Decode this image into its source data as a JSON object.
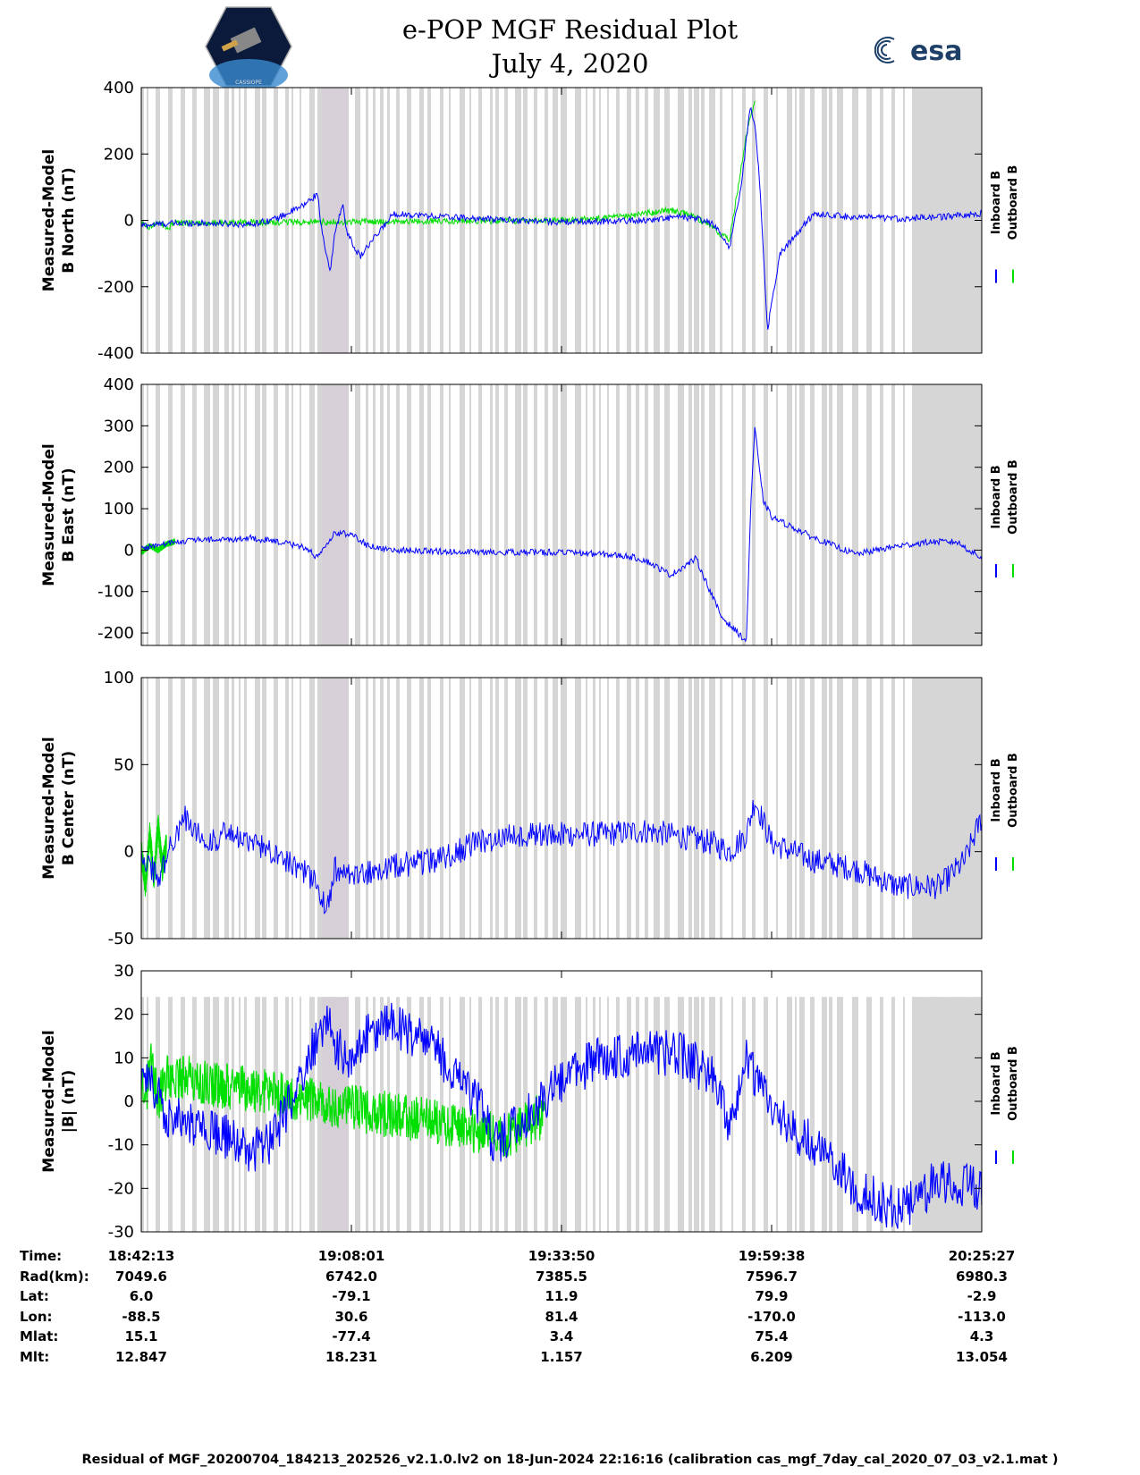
{
  "header": {
    "title_line1": "e-POP MGF Residual Plot",
    "title_line2": "July 4, 2020",
    "left_logo_text": "CASSIOPE",
    "right_logo_text": "esa"
  },
  "colors": {
    "inboard": "#0000ff",
    "outboard": "#00e000",
    "shade": "#d6d6d6",
    "shade_dark": "#d6cfd8"
  },
  "legend": {
    "inboard": "Inboard B",
    "outboard": "Outboard B"
  },
  "chart_data": [
    {
      "type": "line",
      "ylabel": [
        "Measured-Model",
        "B North (nT)"
      ],
      "ylim": [
        -400,
        400
      ],
      "yticks": [
        -400,
        -200,
        0,
        200,
        400
      ],
      "series": [
        {
          "name": "Inboard B",
          "color": "#0000ff",
          "x": [
            0,
            0.03,
            0.06,
            0.1,
            0.13,
            0.16,
            0.19,
            0.21,
            0.215,
            0.225,
            0.23,
            0.24,
            0.245,
            0.26,
            0.3,
            0.4,
            0.5,
            0.6,
            0.64,
            0.66,
            0.68,
            0.7,
            0.715,
            0.72,
            0.725,
            0.73,
            0.735,
            0.745,
            0.76,
            0.8,
            0.85,
            0.9,
            0.95,
            1.0
          ],
          "y": [
            -15,
            -10,
            -8,
            -10,
            -12,
            5,
            40,
            80,
            -40,
            -160,
            -40,
            50,
            -40,
            -110,
            20,
            5,
            -5,
            0,
            10,
            5,
            -10,
            -80,
            120,
            250,
            340,
            290,
            150,
            -330,
            -100,
            20,
            10,
            5,
            10,
            20
          ]
        },
        {
          "name": "Outboard B",
          "color": "#00e000",
          "x": [
            0,
            0.01,
            0.02,
            0.03,
            0.04,
            0.5,
            0.55,
            0.6,
            0.62,
            0.64,
            0.66,
            0.7,
            0.72,
            0.73
          ],
          "y": [
            -5,
            -20,
            -5,
            -25,
            -8,
            0,
            5,
            20,
            30,
            25,
            10,
            -60,
            260,
            360
          ]
        }
      ]
    },
    {
      "type": "line",
      "ylabel": [
        "Measured-Model",
        "B East (nT)"
      ],
      "ylim": [
        -230,
        400
      ],
      "yticks": [
        -200,
        -100,
        0,
        100,
        200,
        300,
        400
      ],
      "series": [
        {
          "name": "Inboard B",
          "color": "#0000ff",
          "x": [
            0,
            0.03,
            0.06,
            0.1,
            0.13,
            0.16,
            0.19,
            0.2,
            0.21,
            0.23,
            0.25,
            0.27,
            0.3,
            0.4,
            0.5,
            0.55,
            0.58,
            0.6,
            0.63,
            0.66,
            0.69,
            0.7,
            0.72,
            0.725,
            0.73,
            0.735,
            0.74,
            0.75,
            0.8,
            0.85,
            0.9,
            0.94,
            0.97,
            1.0
          ],
          "y": [
            5,
            15,
            25,
            25,
            30,
            20,
            10,
            0,
            -20,
            40,
            40,
            10,
            0,
            -5,
            -5,
            -10,
            -15,
            -25,
            -60,
            -20,
            -160,
            -180,
            -220,
            100,
            300,
            200,
            120,
            80,
            30,
            -10,
            10,
            20,
            20,
            -20
          ]
        },
        {
          "name": "Outboard B",
          "color": "#00e000",
          "x": [
            0,
            0.01,
            0.02,
            0.03,
            0.04
          ],
          "y": [
            -5,
            10,
            0,
            15,
            20
          ]
        }
      ]
    },
    {
      "type": "line",
      "ylabel": [
        "Measured-Model",
        "B Center (nT)"
      ],
      "ylim": [
        -50,
        100
      ],
      "yticks": [
        -50,
        0,
        50,
        100
      ],
      "series": [
        {
          "name": "Inboard B",
          "color": "#0000ff",
          "x": [
            0,
            0.02,
            0.05,
            0.08,
            0.1,
            0.13,
            0.16,
            0.19,
            0.21,
            0.22,
            0.23,
            0.25,
            0.3,
            0.35,
            0.4,
            0.45,
            0.5,
            0.55,
            0.6,
            0.65,
            0.68,
            0.7,
            0.72,
            0.73,
            0.75,
            0.8,
            0.85,
            0.9,
            0.95,
            0.98,
            1.0
          ],
          "y": [
            0,
            -15,
            20,
            5,
            10,
            5,
            0,
            -10,
            -20,
            -35,
            -10,
            -15,
            -8,
            -5,
            5,
            10,
            10,
            10,
            12,
            8,
            5,
            0,
            10,
            30,
            5,
            -5,
            -10,
            -20,
            -20,
            -5,
            20
          ]
        },
        {
          "name": "Outboard B",
          "color": "#00e000",
          "x": [
            0,
            0.005,
            0.01,
            0.015,
            0.02,
            0.025,
            0.03
          ],
          "y": [
            0,
            -20,
            10,
            -15,
            15,
            -10,
            5
          ]
        }
      ]
    },
    {
      "type": "line",
      "ylabel": [
        "Measured-Model",
        "|B| (nT)"
      ],
      "ylim": [
        -30,
        30
      ],
      "yticks": [
        -30,
        -20,
        -10,
        0,
        10,
        20,
        30
      ],
      "series": [
        {
          "name": "Inboard B",
          "color": "#0000ff",
          "x": [
            0,
            0.02,
            0.03,
            0.05,
            0.08,
            0.1,
            0.13,
            0.15,
            0.18,
            0.2,
            0.22,
            0.23,
            0.25,
            0.27,
            0.3,
            0.35,
            0.4,
            0.42,
            0.45,
            0.5,
            0.55,
            0.6,
            0.65,
            0.68,
            0.7,
            0.72,
            0.75,
            0.8,
            0.85,
            0.9,
            0.95,
            1.0
          ],
          "y": [
            5,
            3,
            -3,
            -5,
            -6,
            -8,
            -12,
            -10,
            0,
            10,
            20,
            12,
            10,
            15,
            18,
            12,
            0,
            -10,
            -5,
            5,
            10,
            12,
            10,
            5,
            -7,
            10,
            -2,
            -10,
            -20,
            -25,
            -18,
            -20
          ]
        },
        {
          "name": "Outboard B",
          "color": "#00e000",
          "x": [
            0,
            0.005,
            0.01,
            0.02,
            0.03,
            0.44,
            0.46,
            0.48
          ],
          "y": [
            5,
            -2,
            10,
            0,
            6,
            -8,
            -5,
            -3
          ]
        }
      ]
    }
  ],
  "ephemeris": {
    "labels": [
      "Time:",
      "Rad(km):",
      "Lat:",
      "Lon:",
      "Mlat:",
      "Mlt:"
    ],
    "columns": [
      [
        "18:42:13",
        "7049.6",
        "6.0",
        "-88.5",
        "15.1",
        "12.847"
      ],
      [
        "19:08:01",
        "6742.0",
        "-79.1",
        "30.6",
        "-77.4",
        "18.231"
      ],
      [
        "19:33:50",
        "7385.5",
        "11.9",
        "81.4",
        "3.4",
        "1.157"
      ],
      [
        "19:59:38",
        "7596.7",
        "79.9",
        "-170.0",
        "75.4",
        "6.209"
      ],
      [
        "20:25:27",
        "6980.3",
        "-2.9",
        "-113.0",
        "4.3",
        "13.054"
      ]
    ]
  },
  "footer": "Residual of MGF_20200704_184213_202526_v2.1.0.lv2 on 18-Jun-2024 22:16:16 (calibration cas_mgf_7day_cal_2020_07_03_v2.1.mat )"
}
